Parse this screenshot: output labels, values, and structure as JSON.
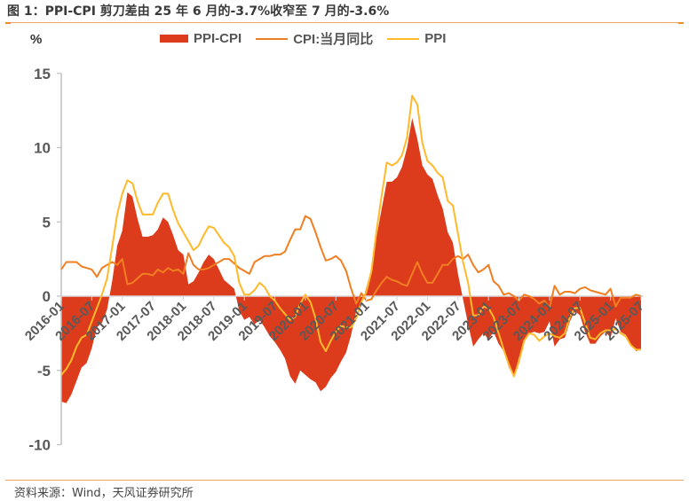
{
  "header": {
    "title": "图 1：PPI-CPI 剪刀差由 25 年 6 月的-3.7%收窄至 7 月的-3.6%"
  },
  "footer": {
    "source": "资料来源：Wind，天风证券研究所"
  },
  "colors": {
    "spread_fill": "#dd3c1c",
    "cpi_line": "#f07f22",
    "ppi_line": "#ffb92a",
    "axis": "#bfbfbf",
    "tick_text": "#595959",
    "rule": "#f4a561"
  },
  "chart_data": {
    "type": "area+line",
    "title": "PPI-CPI 剪刀差由 25 年 6 月的-3.7%收窄至 7 月的-3.6%",
    "ylabel": "%",
    "xlabel": "",
    "ylim": [
      -10,
      15
    ],
    "yticks": [
      -10,
      -5,
      0,
      5,
      10,
      15
    ],
    "xticks": [
      "2016-01",
      "2016-07",
      "2017-01",
      "2017-07",
      "2018-01",
      "2018-07",
      "2019-01",
      "2019-07",
      "2020-01",
      "2020-07",
      "2021-01",
      "2021-07",
      "2022-01",
      "2022-07",
      "2023-01",
      "2023-07",
      "2024-01",
      "2024-07",
      "2025-01",
      "2025-07"
    ],
    "grid": false,
    "legend_position": "top",
    "legend": [
      "PPI-CPI",
      "CPI:当月同比",
      "PPI"
    ],
    "x_start": "2016-01",
    "x_end": "2025-07",
    "frequency": "monthly",
    "series": [
      {
        "name": "CPI:当月同比",
        "type": "line",
        "values": [
          1.8,
          2.3,
          2.3,
          2.3,
          2.0,
          1.9,
          1.8,
          1.3,
          1.9,
          2.1,
          2.3,
          2.1,
          2.5,
          0.8,
          0.9,
          1.2,
          1.5,
          1.5,
          1.4,
          1.8,
          1.6,
          1.9,
          1.7,
          1.8,
          1.5,
          2.9,
          2.1,
          1.8,
          1.8,
          1.9,
          2.1,
          2.3,
          2.5,
          2.5,
          2.2,
          1.9,
          1.7,
          1.5,
          2.3,
          2.5,
          2.7,
          2.7,
          2.8,
          2.8,
          3.0,
          3.8,
          4.5,
          4.5,
          5.4,
          5.2,
          4.3,
          3.3,
          2.4,
          2.5,
          2.7,
          2.4,
          1.7,
          0.5,
          -0.5,
          0.2,
          -0.3,
          -0.2,
          0.4,
          0.9,
          1.3,
          1.1,
          1.0,
          0.8,
          0.7,
          1.5,
          2.3,
          1.5,
          0.9,
          0.9,
          1.5,
          2.1,
          2.1,
          2.5,
          2.7,
          2.5,
          2.8,
          2.1,
          1.6,
          1.8,
          2.1,
          1.0,
          0.7,
          0.1,
          0.2,
          0.0,
          -0.3,
          0.1,
          0.0,
          -0.2,
          -0.5,
          -0.3,
          -0.8,
          0.7,
          0.1,
          0.3,
          0.3,
          0.2,
          0.5,
          0.6,
          0.4,
          0.3,
          0.2,
          0.1,
          0.5,
          -0.7,
          -0.1,
          -0.1,
          -0.1,
          0.1,
          0.0
        ]
      },
      {
        "name": "PPI",
        "type": "line",
        "values": [
          -5.3,
          -4.9,
          -4.3,
          -3.4,
          -2.8,
          -2.6,
          -1.7,
          -0.8,
          0.1,
          1.2,
          3.3,
          5.5,
          6.9,
          7.8,
          7.6,
          6.4,
          5.5,
          5.5,
          5.5,
          6.3,
          6.9,
          6.9,
          5.8,
          4.9,
          4.3,
          3.7,
          3.1,
          3.4,
          4.1,
          4.7,
          4.6,
          4.1,
          3.6,
          3.3,
          2.7,
          0.9,
          0.1,
          0.1,
          0.4,
          0.9,
          0.6,
          0.0,
          -0.3,
          -0.8,
          -1.2,
          -1.6,
          -1.4,
          -0.5,
          0.1,
          -0.4,
          -1.5,
          -3.1,
          -3.7,
          -3.0,
          -2.4,
          -2.0,
          -2.1,
          -2.1,
          -1.5,
          -0.4,
          0.3,
          1.7,
          4.4,
          6.8,
          9.0,
          8.8,
          9.0,
          9.5,
          10.7,
          13.5,
          12.9,
          10.3,
          9.1,
          8.8,
          8.3,
          8.0,
          6.4,
          6.1,
          4.2,
          2.3,
          0.9,
          -1.3,
          -1.3,
          -0.7,
          -0.8,
          -1.4,
          -2.5,
          -3.6,
          -4.6,
          -5.4,
          -4.4,
          -3.0,
          -2.5,
          -2.6,
          -3.0,
          -2.7,
          -2.5,
          -2.7,
          -2.8,
          -2.5,
          -1.4,
          -0.8,
          -0.8,
          -1.8,
          -2.8,
          -2.9,
          -2.5,
          -2.3,
          -2.3,
          -2.2,
          -2.5,
          -2.7,
          -3.3,
          -3.6,
          -3.6
        ]
      },
      {
        "name": "PPI-CPI",
        "type": "area",
        "values": [
          -7.1,
          -7.2,
          -6.6,
          -5.7,
          -4.8,
          -4.5,
          -3.5,
          -2.1,
          -1.8,
          -0.9,
          1.0,
          3.4,
          4.4,
          7.0,
          6.7,
          5.2,
          4.0,
          4.0,
          4.1,
          4.5,
          5.3,
          5.0,
          4.1,
          3.1,
          2.8,
          0.8,
          1.0,
          1.6,
          2.3,
          2.8,
          2.5,
          1.8,
          1.1,
          0.8,
          0.5,
          -1.0,
          -1.6,
          -1.4,
          -1.9,
          -1.6,
          -2.1,
          -2.7,
          -3.1,
          -3.6,
          -4.2,
          -5.4,
          -5.9,
          -5.0,
          -5.3,
          -5.6,
          -5.8,
          -6.4,
          -6.1,
          -5.5,
          -5.1,
          -4.4,
          -3.8,
          -2.6,
          -1.0,
          -0.6,
          0.6,
          1.9,
          4.0,
          5.9,
          7.7,
          7.7,
          8.0,
          8.7,
          10.0,
          12.0,
          10.6,
          8.8,
          8.2,
          7.9,
          6.8,
          5.9,
          4.3,
          3.6,
          1.5,
          -0.2,
          -1.9,
          -3.4,
          -2.9,
          -2.5,
          -2.9,
          -2.4,
          -3.2,
          -3.7,
          -4.8,
          -5.4,
          -4.1,
          -3.1,
          -2.5,
          -2.4,
          -2.5,
          -2.4,
          -1.7,
          -3.4,
          -2.9,
          -2.8,
          -1.7,
          -1.0,
          -1.3,
          -2.4,
          -3.2,
          -3.2,
          -2.7,
          -2.4,
          -2.8,
          -1.5,
          -2.4,
          -2.6,
          -3.2,
          -3.7,
          -3.6
        ]
      }
    ]
  }
}
